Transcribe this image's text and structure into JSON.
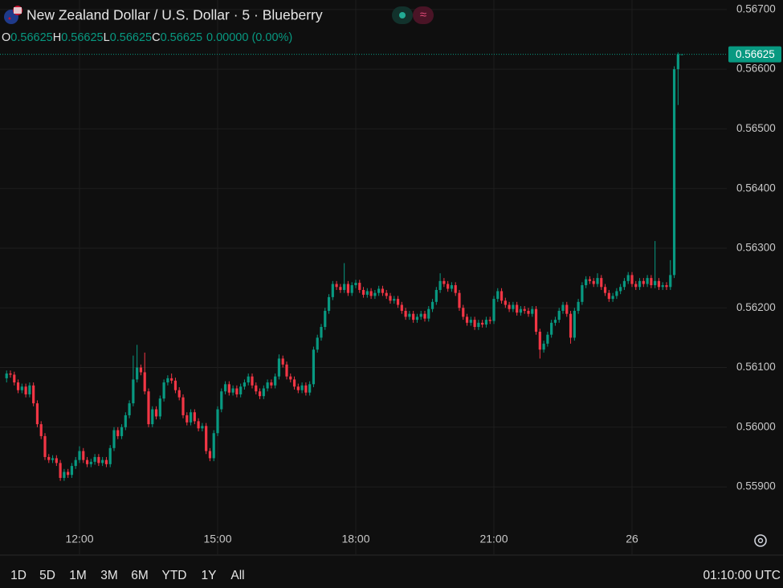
{
  "chart_data": {
    "type": "candlestick",
    "title": "New Zealand Dollar / U.S. Dollar · 5 · Blueberry",
    "quote": [
      {
        "label": "O",
        "value": "0.56625"
      },
      {
        "label": "H",
        "value": "0.56625"
      },
      {
        "label": "L",
        "value": "0.56625"
      },
      {
        "label": "C",
        "value": "0.56625"
      }
    ],
    "change": "0.00000 (0.00%)",
    "last_price": 0.56625,
    "up_color": "#089981",
    "down_color": "#f23645",
    "grid": true,
    "xlim": [
      -1.72,
      187.7
    ],
    "xticks": [
      {
        "value": 19,
        "label": "12:00"
      },
      {
        "value": 55,
        "label": "15:00"
      },
      {
        "value": 91,
        "label": "18:00"
      },
      {
        "value": 127,
        "label": "21:00"
      },
      {
        "value": 163,
        "label": "26"
      }
    ],
    "ylim": [
      0.55787,
      0.56716
    ],
    "yticks": [
      {
        "value": 0.559,
        "label": "0.55900"
      },
      {
        "value": 0.56,
        "label": "0.56000"
      },
      {
        "value": 0.561,
        "label": "0.56100"
      },
      {
        "value": 0.562,
        "label": "0.56200"
      },
      {
        "value": 0.563,
        "label": "0.56300"
      },
      {
        "value": 0.564,
        "label": "0.56400"
      },
      {
        "value": 0.565,
        "label": "0.56500"
      },
      {
        "value": 0.566,
        "label": "0.56600"
      },
      {
        "value": 0.567,
        "label": "0.56700"
      }
    ],
    "ohlc": [
      [
        0.56082,
        0.56095,
        0.56075,
        0.5609
      ],
      [
        0.5609,
        0.56095,
        0.56083,
        0.56088
      ],
      [
        0.56088,
        0.56093,
        0.5607,
        0.56075
      ],
      [
        0.56075,
        0.5608,
        0.56057,
        0.56062
      ],
      [
        0.56062,
        0.56073,
        0.56057,
        0.56068
      ],
      [
        0.56068,
        0.56073,
        0.5605,
        0.56055
      ],
      [
        0.56055,
        0.56075,
        0.5605,
        0.5607
      ],
      [
        0.5607,
        0.56075,
        0.56035,
        0.5604
      ],
      [
        0.5604,
        0.56045,
        0.56,
        0.56005
      ],
      [
        0.56005,
        0.5601,
        0.5598,
        0.55985
      ],
      [
        0.55985,
        0.5599,
        0.55945,
        0.5595
      ],
      [
        0.5595,
        0.55955,
        0.5594,
        0.55945
      ],
      [
        0.55945,
        0.55953,
        0.5594,
        0.55948
      ],
      [
        0.55948,
        0.55953,
        0.55935,
        0.5594
      ],
      [
        0.5594,
        0.55945,
        0.5591,
        0.55915
      ],
      [
        0.55915,
        0.5593,
        0.5591,
        0.55925
      ],
      [
        0.55925,
        0.5593,
        0.55915,
        0.5592
      ],
      [
        0.5592,
        0.5594,
        0.55915,
        0.55935
      ],
      [
        0.55935,
        0.5595,
        0.5593,
        0.55945
      ],
      [
        0.55945,
        0.55968,
        0.5594,
        0.5596
      ],
      [
        0.5596,
        0.55965,
        0.5594,
        0.55945
      ],
      [
        0.55945,
        0.5595,
        0.55933,
        0.55938
      ],
      [
        0.55938,
        0.55947,
        0.55933,
        0.55942
      ],
      [
        0.55942,
        0.55955,
        0.55937,
        0.5595
      ],
      [
        0.5595,
        0.55955,
        0.55935,
        0.5594
      ],
      [
        0.5594,
        0.5595,
        0.55935,
        0.55945
      ],
      [
        0.55945,
        0.5595,
        0.55933,
        0.55938
      ],
      [
        0.55938,
        0.5597,
        0.55933,
        0.55965
      ],
      [
        0.55965,
        0.56,
        0.5596,
        0.55995
      ],
      [
        0.55995,
        0.56,
        0.5598,
        0.55985
      ],
      [
        0.55985,
        0.56005,
        0.5598,
        0.56
      ],
      [
        0.56,
        0.56025,
        0.55995,
        0.5602
      ],
      [
        0.5602,
        0.56045,
        0.56015,
        0.5604
      ],
      [
        0.5604,
        0.5612,
        0.56035,
        0.5608
      ],
      [
        0.5608,
        0.56138,
        0.56075,
        0.561
      ],
      [
        0.561,
        0.56105,
        0.56087,
        0.56092
      ],
      [
        0.56092,
        0.56125,
        0.56055,
        0.5606
      ],
      [
        0.5606,
        0.56065,
        0.56,
        0.56005
      ],
      [
        0.56005,
        0.56035,
        0.56,
        0.5603
      ],
      [
        0.5603,
        0.56035,
        0.56013,
        0.56018
      ],
      [
        0.56018,
        0.56053,
        0.56013,
        0.56048
      ],
      [
        0.56048,
        0.5608,
        0.56043,
        0.56075
      ],
      [
        0.56075,
        0.56087,
        0.5607,
        0.56082
      ],
      [
        0.56082,
        0.5609,
        0.56073,
        0.56078
      ],
      [
        0.56078,
        0.56083,
        0.56057,
        0.56062
      ],
      [
        0.56062,
        0.56067,
        0.56045,
        0.5605
      ],
      [
        0.5605,
        0.56055,
        0.56015,
        0.5602
      ],
      [
        0.5602,
        0.56025,
        0.56003,
        0.56008
      ],
      [
        0.56008,
        0.5603,
        0.56003,
        0.56025
      ],
      [
        0.56025,
        0.5603,
        0.56005,
        0.5601
      ],
      [
        0.5601,
        0.56015,
        0.55993,
        0.55998
      ],
      [
        0.55998,
        0.56007,
        0.55993,
        0.56002
      ],
      [
        0.56002,
        0.56007,
        0.55955,
        0.5596
      ],
      [
        0.5596,
        0.55965,
        0.55943,
        0.55948
      ],
      [
        0.55948,
        0.55995,
        0.55943,
        0.5599
      ],
      [
        0.5599,
        0.56035,
        0.55985,
        0.5603
      ],
      [
        0.5603,
        0.56065,
        0.56025,
        0.5606
      ],
      [
        0.5606,
        0.56077,
        0.56055,
        0.56072
      ],
      [
        0.56072,
        0.56077,
        0.56053,
        0.56058
      ],
      [
        0.56058,
        0.5607,
        0.56053,
        0.56065
      ],
      [
        0.56065,
        0.5607,
        0.5605,
        0.56055
      ],
      [
        0.56055,
        0.56073,
        0.5605,
        0.56068
      ],
      [
        0.56068,
        0.5608,
        0.56063,
        0.56075
      ],
      [
        0.56075,
        0.5609,
        0.5607,
        0.56085
      ],
      [
        0.56085,
        0.5609,
        0.56065,
        0.5607
      ],
      [
        0.5607,
        0.56075,
        0.56055,
        0.5606
      ],
      [
        0.5606,
        0.56065,
        0.56047,
        0.56052
      ],
      [
        0.56052,
        0.5607,
        0.56047,
        0.56065
      ],
      [
        0.56065,
        0.5608,
        0.5606,
        0.56075
      ],
      [
        0.56075,
        0.5608,
        0.56065,
        0.5607
      ],
      [
        0.5607,
        0.5609,
        0.56065,
        0.56085
      ],
      [
        0.56085,
        0.56122,
        0.5608,
        0.56115
      ],
      [
        0.56115,
        0.5612,
        0.561,
        0.56105
      ],
      [
        0.56105,
        0.5611,
        0.5608,
        0.56085
      ],
      [
        0.56085,
        0.5609,
        0.56075,
        0.5608
      ],
      [
        0.5608,
        0.56085,
        0.56063,
        0.56068
      ],
      [
        0.56068,
        0.56073,
        0.56057,
        0.56062
      ],
      [
        0.56062,
        0.56075,
        0.56057,
        0.5607
      ],
      [
        0.5607,
        0.56075,
        0.56053,
        0.56058
      ],
      [
        0.56058,
        0.56077,
        0.56053,
        0.56072
      ],
      [
        0.56072,
        0.56135,
        0.56067,
        0.5613
      ],
      [
        0.5613,
        0.56155,
        0.56125,
        0.5615
      ],
      [
        0.5615,
        0.56173,
        0.56145,
        0.56168
      ],
      [
        0.56168,
        0.562,
        0.56163,
        0.56195
      ],
      [
        0.56195,
        0.56223,
        0.5619,
        0.56218
      ],
      [
        0.56218,
        0.56245,
        0.56213,
        0.5624
      ],
      [
        0.5624,
        0.56245,
        0.5623,
        0.56235
      ],
      [
        0.56235,
        0.5624,
        0.56225,
        0.5623
      ],
      [
        0.5623,
        0.56275,
        0.56225,
        0.5624
      ],
      [
        0.5624,
        0.56245,
        0.5622,
        0.56225
      ],
      [
        0.56225,
        0.56243,
        0.5622,
        0.56238
      ],
      [
        0.56238,
        0.56247,
        0.56233,
        0.56242
      ],
      [
        0.56242,
        0.56247,
        0.56225,
        0.5623
      ],
      [
        0.5623,
        0.56235,
        0.56217,
        0.56222
      ],
      [
        0.56222,
        0.56233,
        0.56217,
        0.56228
      ],
      [
        0.56228,
        0.56233,
        0.56215,
        0.5622
      ],
      [
        0.5622,
        0.5623,
        0.56215,
        0.56225
      ],
      [
        0.56225,
        0.56237,
        0.5622,
        0.56232
      ],
      [
        0.56232,
        0.56237,
        0.5622,
        0.56225
      ],
      [
        0.56225,
        0.5623,
        0.56215,
        0.5622
      ],
      [
        0.5622,
        0.56225,
        0.56207,
        0.56212
      ],
      [
        0.56212,
        0.5622,
        0.56207,
        0.56215
      ],
      [
        0.56215,
        0.5622,
        0.562,
        0.56205
      ],
      [
        0.56205,
        0.5621,
        0.5619,
        0.56195
      ],
      [
        0.56195,
        0.562,
        0.5618,
        0.56185
      ],
      [
        0.56185,
        0.56195,
        0.5618,
        0.5619
      ],
      [
        0.5619,
        0.56195,
        0.56175,
        0.5618
      ],
      [
        0.5618,
        0.5619,
        0.56175,
        0.56185
      ],
      [
        0.56185,
        0.56195,
        0.5618,
        0.5619
      ],
      [
        0.5619,
        0.56195,
        0.56177,
        0.56182
      ],
      [
        0.56182,
        0.56203,
        0.56177,
        0.56198
      ],
      [
        0.56198,
        0.56215,
        0.56193,
        0.5621
      ],
      [
        0.5621,
        0.56235,
        0.56205,
        0.5623
      ],
      [
        0.5623,
        0.56258,
        0.56225,
        0.56245
      ],
      [
        0.56245,
        0.5625,
        0.56235,
        0.5624
      ],
      [
        0.5624,
        0.56245,
        0.56227,
        0.56232
      ],
      [
        0.56232,
        0.56243,
        0.56227,
        0.56238
      ],
      [
        0.56238,
        0.56243,
        0.5622,
        0.56225
      ],
      [
        0.56225,
        0.5623,
        0.56195,
        0.562
      ],
      [
        0.562,
        0.56205,
        0.5618,
        0.56185
      ],
      [
        0.56185,
        0.5619,
        0.5617,
        0.56175
      ],
      [
        0.56175,
        0.56185,
        0.5617,
        0.5618
      ],
      [
        0.5618,
        0.56185,
        0.56163,
        0.56168
      ],
      [
        0.56168,
        0.5618,
        0.56163,
        0.56175
      ],
      [
        0.56175,
        0.5618,
        0.56167,
        0.56172
      ],
      [
        0.56172,
        0.56185,
        0.56167,
        0.5618
      ],
      [
        0.5618,
        0.56185,
        0.56173,
        0.56178
      ],
      [
        0.56178,
        0.5622,
        0.56173,
        0.56215
      ],
      [
        0.56215,
        0.56233,
        0.5621,
        0.56228
      ],
      [
        0.56228,
        0.56233,
        0.56207,
        0.56212
      ],
      [
        0.56212,
        0.56217,
        0.562,
        0.56205
      ],
      [
        0.56205,
        0.5621,
        0.56193,
        0.56198
      ],
      [
        0.56198,
        0.5621,
        0.56193,
        0.56205
      ],
      [
        0.56205,
        0.5621,
        0.56187,
        0.56192
      ],
      [
        0.56192,
        0.56203,
        0.56187,
        0.56198
      ],
      [
        0.56198,
        0.56203,
        0.5619,
        0.56195
      ],
      [
        0.56195,
        0.562,
        0.56185,
        0.5619
      ],
      [
        0.5619,
        0.56203,
        0.56185,
        0.56198
      ],
      [
        0.56198,
        0.56203,
        0.56155,
        0.5616
      ],
      [
        0.5616,
        0.56165,
        0.56115,
        0.5613
      ],
      [
        0.5613,
        0.56145,
        0.56125,
        0.5614
      ],
      [
        0.5614,
        0.5616,
        0.56135,
        0.56155
      ],
      [
        0.56155,
        0.5618,
        0.5615,
        0.56175
      ],
      [
        0.56175,
        0.56185,
        0.5617,
        0.5618
      ],
      [
        0.5618,
        0.562,
        0.56175,
        0.56195
      ],
      [
        0.56195,
        0.5621,
        0.5619,
        0.56205
      ],
      [
        0.56205,
        0.5621,
        0.56185,
        0.5619
      ],
      [
        0.5619,
        0.56195,
        0.5614,
        0.5615
      ],
      [
        0.5615,
        0.562,
        0.56145,
        0.56195
      ],
      [
        0.56195,
        0.56215,
        0.5619,
        0.5621
      ],
      [
        0.5621,
        0.56243,
        0.56205,
        0.56238
      ],
      [
        0.56238,
        0.56253,
        0.56233,
        0.56248
      ],
      [
        0.56248,
        0.56253,
        0.5624,
        0.56245
      ],
      [
        0.56245,
        0.5625,
        0.56235,
        0.5624
      ],
      [
        0.5624,
        0.56258,
        0.56235,
        0.5625
      ],
      [
        0.5625,
        0.56255,
        0.5623,
        0.56235
      ],
      [
        0.56235,
        0.5624,
        0.5622,
        0.56225
      ],
      [
        0.56225,
        0.5623,
        0.5621,
        0.56215
      ],
      [
        0.56215,
        0.56225,
        0.5621,
        0.5622
      ],
      [
        0.5622,
        0.56233,
        0.56215,
        0.56228
      ],
      [
        0.56228,
        0.5624,
        0.56223,
        0.56235
      ],
      [
        0.56235,
        0.5625,
        0.5623,
        0.56245
      ],
      [
        0.56245,
        0.5626,
        0.5624,
        0.56255
      ],
      [
        0.56255,
        0.5626,
        0.56235,
        0.5624
      ],
      [
        0.5624,
        0.56245,
        0.5623,
        0.56235
      ],
      [
        0.56235,
        0.5625,
        0.5623,
        0.56245
      ],
      [
        0.56245,
        0.5625,
        0.56235,
        0.5624
      ],
      [
        0.5624,
        0.56255,
        0.56235,
        0.5625
      ],
      [
        0.5625,
        0.56255,
        0.56233,
        0.56238
      ],
      [
        0.56238,
        0.56312,
        0.56233,
        0.56245
      ],
      [
        0.56245,
        0.5625,
        0.5623,
        0.56235
      ],
      [
        0.56235,
        0.56243,
        0.5623,
        0.56238
      ],
      [
        0.56238,
        0.56243,
        0.5623,
        0.56235
      ],
      [
        0.56235,
        0.5628,
        0.5623,
        0.56255
      ],
      [
        0.56255,
        0.56605,
        0.5625,
        0.566
      ],
      [
        0.566,
        0.56628,
        0.5654,
        0.56625
      ],
      [
        0.56625,
        0.56625,
        0.56625,
        0.56625
      ]
    ],
    "ranges": [
      "1D",
      "5D",
      "1M",
      "3M",
      "6M",
      "YTD",
      "1Y",
      "All"
    ],
    "clock": "01:10:00 UTC"
  }
}
